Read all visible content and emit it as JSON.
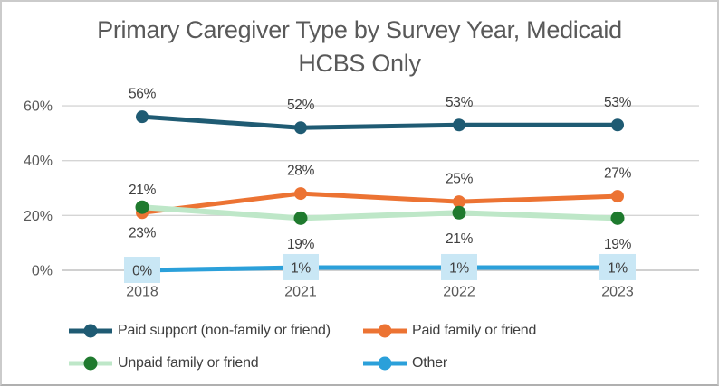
{
  "title": {
    "text": "Primary Caregiver Type by Survey Year, Medicaid HCBS Only",
    "lines": [
      "Primary Caregiver Type by Survey Year, Medicaid",
      "HCBS Only"
    ],
    "color": "#595959"
  },
  "chart_data": {
    "type": "line",
    "categories": [
      "2018",
      "2021",
      "2022",
      "2023"
    ],
    "series": [
      {
        "name": "Paid support (non-family or friend)",
        "values": [
          56,
          52,
          53,
          53
        ],
        "color": "#1F5B73",
        "label_position": "above"
      },
      {
        "name": "Paid family or friend",
        "values": [
          21,
          28,
          25,
          27
        ],
        "color": "#EC7333",
        "label_position": "above"
      },
      {
        "name": "Unpaid family or friend",
        "values": [
          23,
          19,
          21,
          19
        ],
        "color": "#BEE7C8",
        "marker_color": "#1F7A2E",
        "label_position": "below"
      },
      {
        "name": "Other",
        "values": [
          0,
          1,
          1,
          1
        ],
        "color": "#2BA0DA",
        "label_position": "boxed",
        "label_box_fill": "#C9E7F5"
      }
    ],
    "data_labels": [
      [
        "56%",
        "52%",
        "53%",
        "53%"
      ],
      [
        "21%",
        "28%",
        "25%",
        "27%"
      ],
      [
        "23%",
        "19%",
        "21%",
        "19%"
      ],
      [
        "0%",
        "1%",
        "1%",
        "1%"
      ]
    ],
    "y_ticks": [
      {
        "label": "0%",
        "value": 0
      },
      {
        "label": "20%",
        "value": 20
      },
      {
        "label": "40%",
        "value": 40
      },
      {
        "label": "60%",
        "value": 60
      }
    ],
    "ylim": [
      0,
      65
    ],
    "xlabel": "",
    "ylabel": "",
    "grid": true,
    "legend_position": "bottom",
    "colors": {
      "gridline": "#D5D5D5",
      "axis_line": "#C1C1C1",
      "tick_label": "#595959",
      "x_label": "#595959",
      "data_label": "#3F3F3F",
      "legend_text": "#3E3E3E"
    }
  }
}
